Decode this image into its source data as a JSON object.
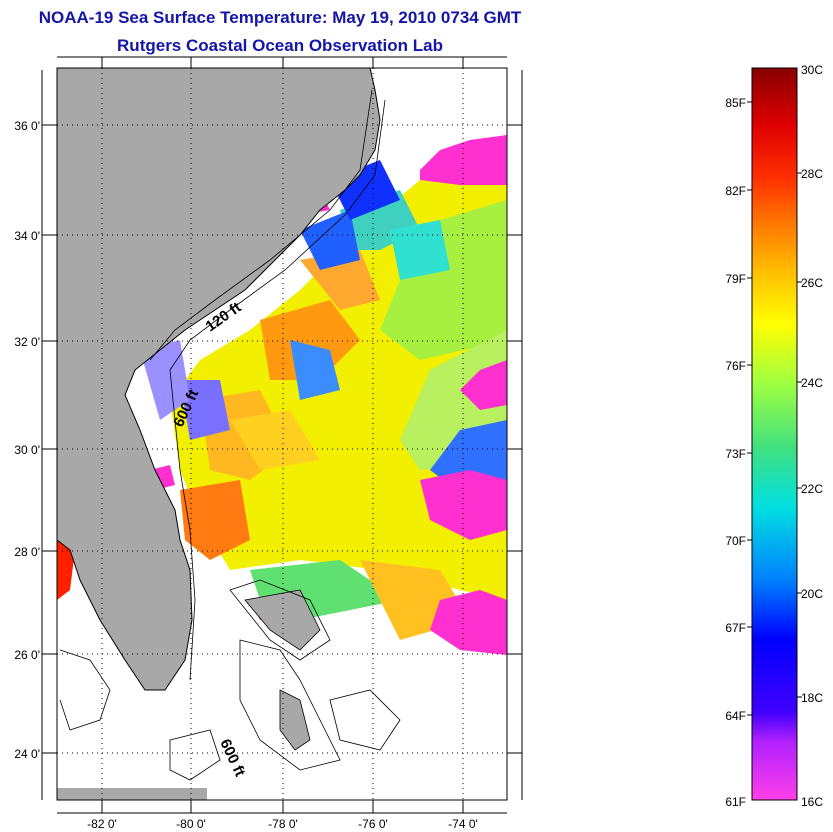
{
  "header": {
    "title": "NOAA-19 Sea Surface Temperature:  May 19, 2010 0734 GMT",
    "subtitle": "Rutgers Coastal Ocean Observation Lab"
  },
  "map": {
    "lat_labels": [
      "36 0'",
      "34 0'",
      "32 0'",
      "30 0'",
      "28 0'",
      "26 0'",
      "24 0'"
    ],
    "lon_labels": [
      "-82 0'",
      "-80 0'",
      "-78 0'",
      "-76 0'",
      "-74 0'"
    ],
    "contour_labels": [
      "120 ft",
      "600 ft",
      "600 ft"
    ],
    "colors": {
      "land": "#a8a8a8",
      "cloud_mask": "#ff2fd0",
      "coastline": "#000000"
    }
  },
  "colorbar": {
    "celsius_labels": [
      "30C",
      "28C",
      "26C",
      "24C",
      "22C",
      "20C",
      "18C",
      "16C"
    ],
    "fahrenheit_labels": [
      "85F",
      "82F",
      "79F",
      "76F",
      "73F",
      "70F",
      "67F",
      "64F",
      "61F"
    ],
    "colors": [
      "#ff40e8",
      "#9000ff",
      "#0000ff",
      "#0080ff",
      "#00e0e0",
      "#40e080",
      "#a0ff40",
      "#ffff00",
      "#ffa000",
      "#ff4000",
      "#e00000",
      "#900000"
    ]
  }
}
